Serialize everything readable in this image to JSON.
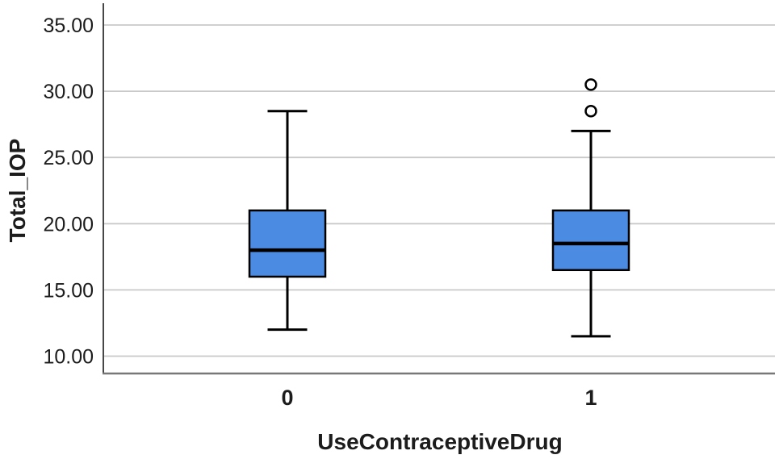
{
  "chart_data": {
    "type": "boxplot",
    "title": "",
    "ylabel": "Total_IOP",
    "xlabel": "UseContraceptiveDrug",
    "categories": [
      "0",
      "1"
    ],
    "y_ticks": [
      10,
      15,
      20,
      25,
      30,
      35
    ],
    "y_tick_labels": [
      "10.00",
      "15.00",
      "20.00",
      "25.00",
      "30.00",
      "35.00"
    ],
    "ylim": [
      10,
      35
    ],
    "grid": true,
    "legend": false,
    "series": [
      {
        "category": "0",
        "whisker_low": 12.0,
        "q1": 16.0,
        "median": 18.0,
        "q3": 21.0,
        "whisker_high": 28.5,
        "outliers": []
      },
      {
        "category": "1",
        "whisker_low": 11.5,
        "q1": 16.5,
        "median": 18.5,
        "q3": 21.0,
        "whisker_high": 27.0,
        "outliers": [
          28.5,
          30.5
        ]
      }
    ],
    "colors": {
      "box_fill": "#4C8BE2",
      "box_border": "#000000",
      "median_line": "#000000",
      "whisker": "#000000",
      "outlier_stroke": "#000000",
      "outlier_fill": "#FFFFFF",
      "gridline": "#C9C9C9",
      "y_axis_line": "#474747",
      "x_axis_line": "#787878",
      "text": "#1C1C1C",
      "background": "#FFFFFF"
    }
  }
}
